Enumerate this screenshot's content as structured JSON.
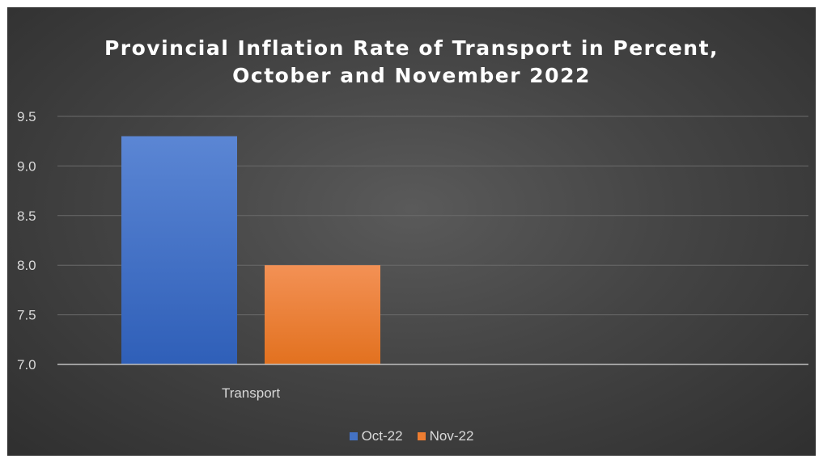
{
  "chart_data": {
    "type": "bar",
    "title_lines": [
      "Provincial Inflation Rate of Transport in Percent,",
      "October and November 2022"
    ],
    "categories": [
      "Transport"
    ],
    "series": [
      {
        "name": "Oct-22",
        "values": [
          9.3
        ],
        "color": "#4472c4"
      },
      {
        "name": "Nov-22",
        "values": [
          8.0
        ],
        "color": "#ed7d31"
      }
    ],
    "yticks": [
      "7.0",
      "7.5",
      "8.0",
      "8.5",
      "9.0",
      "9.5"
    ],
    "ylim": [
      7.0,
      9.5
    ],
    "grid": true,
    "legend_position": "bottom"
  }
}
